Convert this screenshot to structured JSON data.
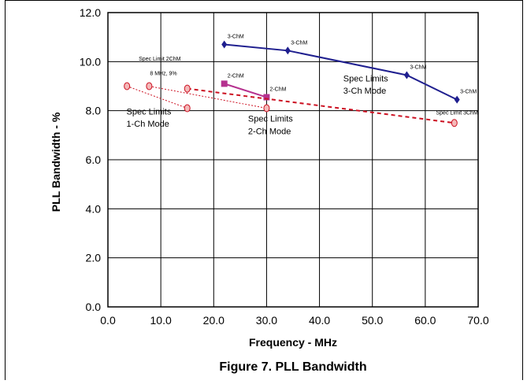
{
  "figure": {
    "caption": "Figure 7. PLL Bandwidth"
  },
  "chart_data": {
    "type": "line",
    "xlabel": "Frequency - MHz",
    "ylabel": "PLL Bandwidth - %",
    "xlim": [
      0,
      70
    ],
    "ylim": [
      0,
      12
    ],
    "x_ticks": [
      "0.0",
      "10.0",
      "20.0",
      "30.0",
      "40.0",
      "50.0",
      "60.0",
      "70.0"
    ],
    "y_ticks": [
      "0.0",
      "2.0",
      "4.0",
      "6.0",
      "8.0",
      "10.0",
      "12.0"
    ],
    "grid": true,
    "legend": "none",
    "series": [
      {
        "id": "three_ch",
        "color": "#1f1f8f",
        "marker": "diamond",
        "style": "solid",
        "points": [
          [
            22,
            10.7
          ],
          [
            34,
            10.45
          ],
          [
            56.5,
            9.45
          ],
          [
            66,
            8.45
          ]
        ],
        "point_labels": [
          "3-ChM",
          "3-ChM",
          "3-ChM",
          "3-ChM"
        ]
      },
      {
        "id": "two_ch",
        "color": "#b5318f",
        "marker": "square",
        "style": "solid",
        "points": [
          [
            22,
            9.1
          ],
          [
            30,
            8.55
          ]
        ],
        "point_labels": [
          "2-ChM",
          "2-ChM"
        ]
      },
      {
        "id": "spec_3ch",
        "color": "#cc1122",
        "marker": "circle",
        "style": "dashed",
        "points": [
          [
            15,
            8.9
          ],
          [
            65.5,
            7.5
          ]
        ]
      },
      {
        "id": "spec_2ch",
        "color": "#cc1122",
        "marker": "circle",
        "style": "dotted",
        "points": [
          [
            7.8,
            9.0
          ],
          [
            30,
            8.1
          ]
        ]
      },
      {
        "id": "spec_1ch",
        "color": "#cc1122",
        "marker": "circle",
        "style": "dotted",
        "points": [
          [
            3.6,
            9.0
          ],
          [
            15,
            8.1
          ]
        ]
      }
    ],
    "annotations": [
      {
        "id": "spec_limit_2chm",
        "text": "Spec Limit 2ChM",
        "x": 9.8,
        "y": 10.05,
        "size": "small"
      },
      {
        "id": "mhz_8",
        "text": "8 MHz, 9%",
        "x": 10.5,
        "y": 9.45,
        "size": "small"
      },
      {
        "id": "spec_limit_3chm",
        "text": "Spec Limit 3ChM",
        "x": 66,
        "y": 7.85,
        "size": "small"
      },
      {
        "id": "spec_3ch_l1",
        "text": "Spec Limits",
        "x": 44.5,
        "y": 9.2,
        "size": "normal"
      },
      {
        "id": "spec_3ch_l2",
        "text": "3-Ch Mode",
        "x": 44.5,
        "y": 8.7,
        "size": "normal"
      },
      {
        "id": "spec_2ch_l1",
        "text": "Spec Limits",
        "x": 26.5,
        "y": 7.55,
        "size": "normal"
      },
      {
        "id": "spec_2ch_l2",
        "text": "2-Ch Mode",
        "x": 26.5,
        "y": 7.05,
        "size": "normal"
      },
      {
        "id": "spec_1ch_l1",
        "text": "Spec Limits",
        "x": 3.5,
        "y": 7.85,
        "size": "normal"
      },
      {
        "id": "spec_1ch_l2",
        "text": "1-Ch Mode",
        "x": 3.5,
        "y": 7.35,
        "size": "normal"
      }
    ]
  }
}
